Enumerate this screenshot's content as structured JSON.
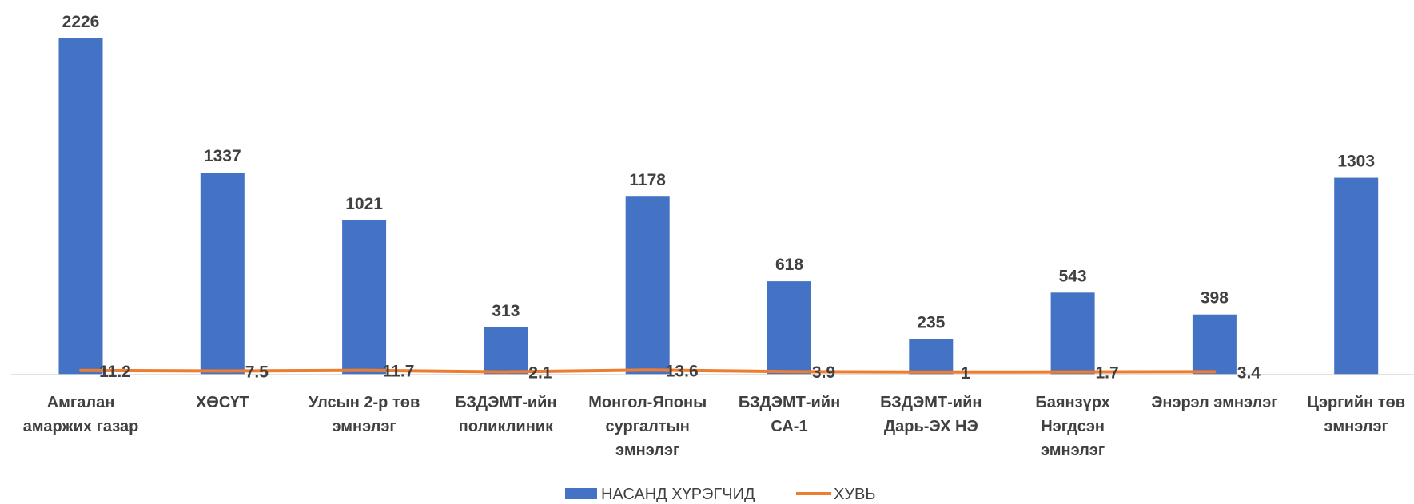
{
  "chart_data": {
    "type": "bar",
    "categories": [
      [
        "Амгалан",
        "амаржих газар"
      ],
      [
        "ХӨСҮТ"
      ],
      [
        "Улсын 2-р төв",
        "эмнэлэг"
      ],
      [
        "БЗДЭМТ-ийн",
        "поликлиник"
      ],
      [
        "Монгол-Японы",
        "сургалтын",
        "эмнэлэг"
      ],
      [
        "БЗДЭМТ-ийн",
        "СА-1"
      ],
      [
        "БЗДЭМТ-ийн",
        "Дарь-ЭХ НЭ"
      ],
      [
        "Баянзүрх",
        "Нэгдсэн",
        "эмнэлэг"
      ],
      [
        "Энэрэл эмнэлэг"
      ],
      [
        "Цэргийн төв",
        "эмнэлэг"
      ]
    ],
    "series": [
      {
        "name": "НАСАНД ХҮРЭГЧИД",
        "type": "bar",
        "color": "#4472C4",
        "values": [
          2226,
          1337,
          1021,
          313,
          1178,
          618,
          235,
          543,
          398,
          1303
        ]
      },
      {
        "name": "ХУВЬ",
        "type": "line",
        "color": "#ED7D31",
        "values": [
          11.2,
          7.5,
          11.7,
          2.1,
          13.6,
          3.9,
          1,
          1.7,
          3.4,
          null
        ]
      }
    ],
    "ylim": [
      0,
      2226
    ],
    "legend_position": "bottom-center",
    "grid": false
  }
}
